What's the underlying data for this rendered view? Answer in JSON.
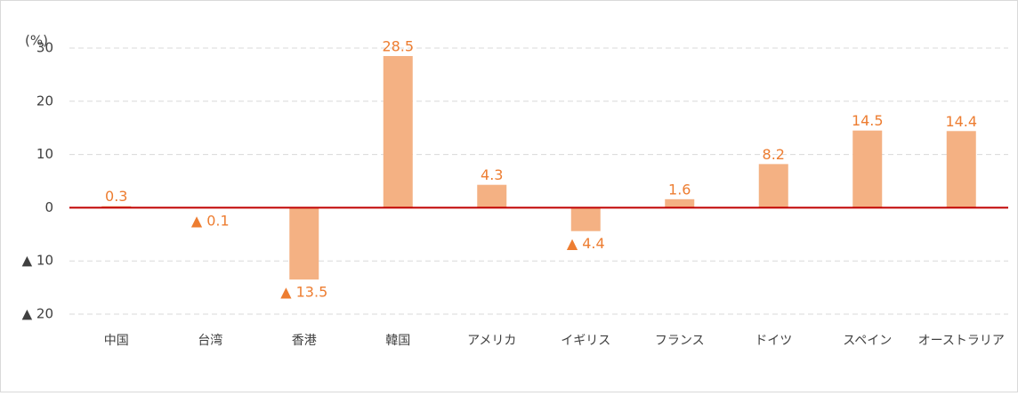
{
  "chart_data": {
    "type": "bar",
    "ylabel": "(%)",
    "categories": [
      "中国",
      "台湾",
      "香港",
      "韓国",
      "アメリカ",
      "イギリス",
      "フランス",
      "ドイツ",
      "スペイン",
      "オーストラリア"
    ],
    "values": [
      0.3,
      -0.1,
      -13.5,
      28.5,
      4.3,
      -4.4,
      1.6,
      8.2,
      14.5,
      14.4
    ],
    "value_labels": [
      "0.3",
      "▲ 0.1",
      "▲ 13.5",
      "28.5",
      "4.3",
      "▲ 4.4",
      "1.6",
      "8.2",
      "14.5",
      "14.4"
    ],
    "color": "#f4b183",
    "label_color": "#ed7d31",
    "zero_line_color": "#c00000",
    "ylim": [
      -20,
      30
    ],
    "yticks": [
      30,
      20,
      10,
      0,
      {
        "value": -10,
        "label": "▲ 10"
      },
      {
        "value": -20,
        "label": "▲ 20"
      }
    ],
    "grid": true
  }
}
